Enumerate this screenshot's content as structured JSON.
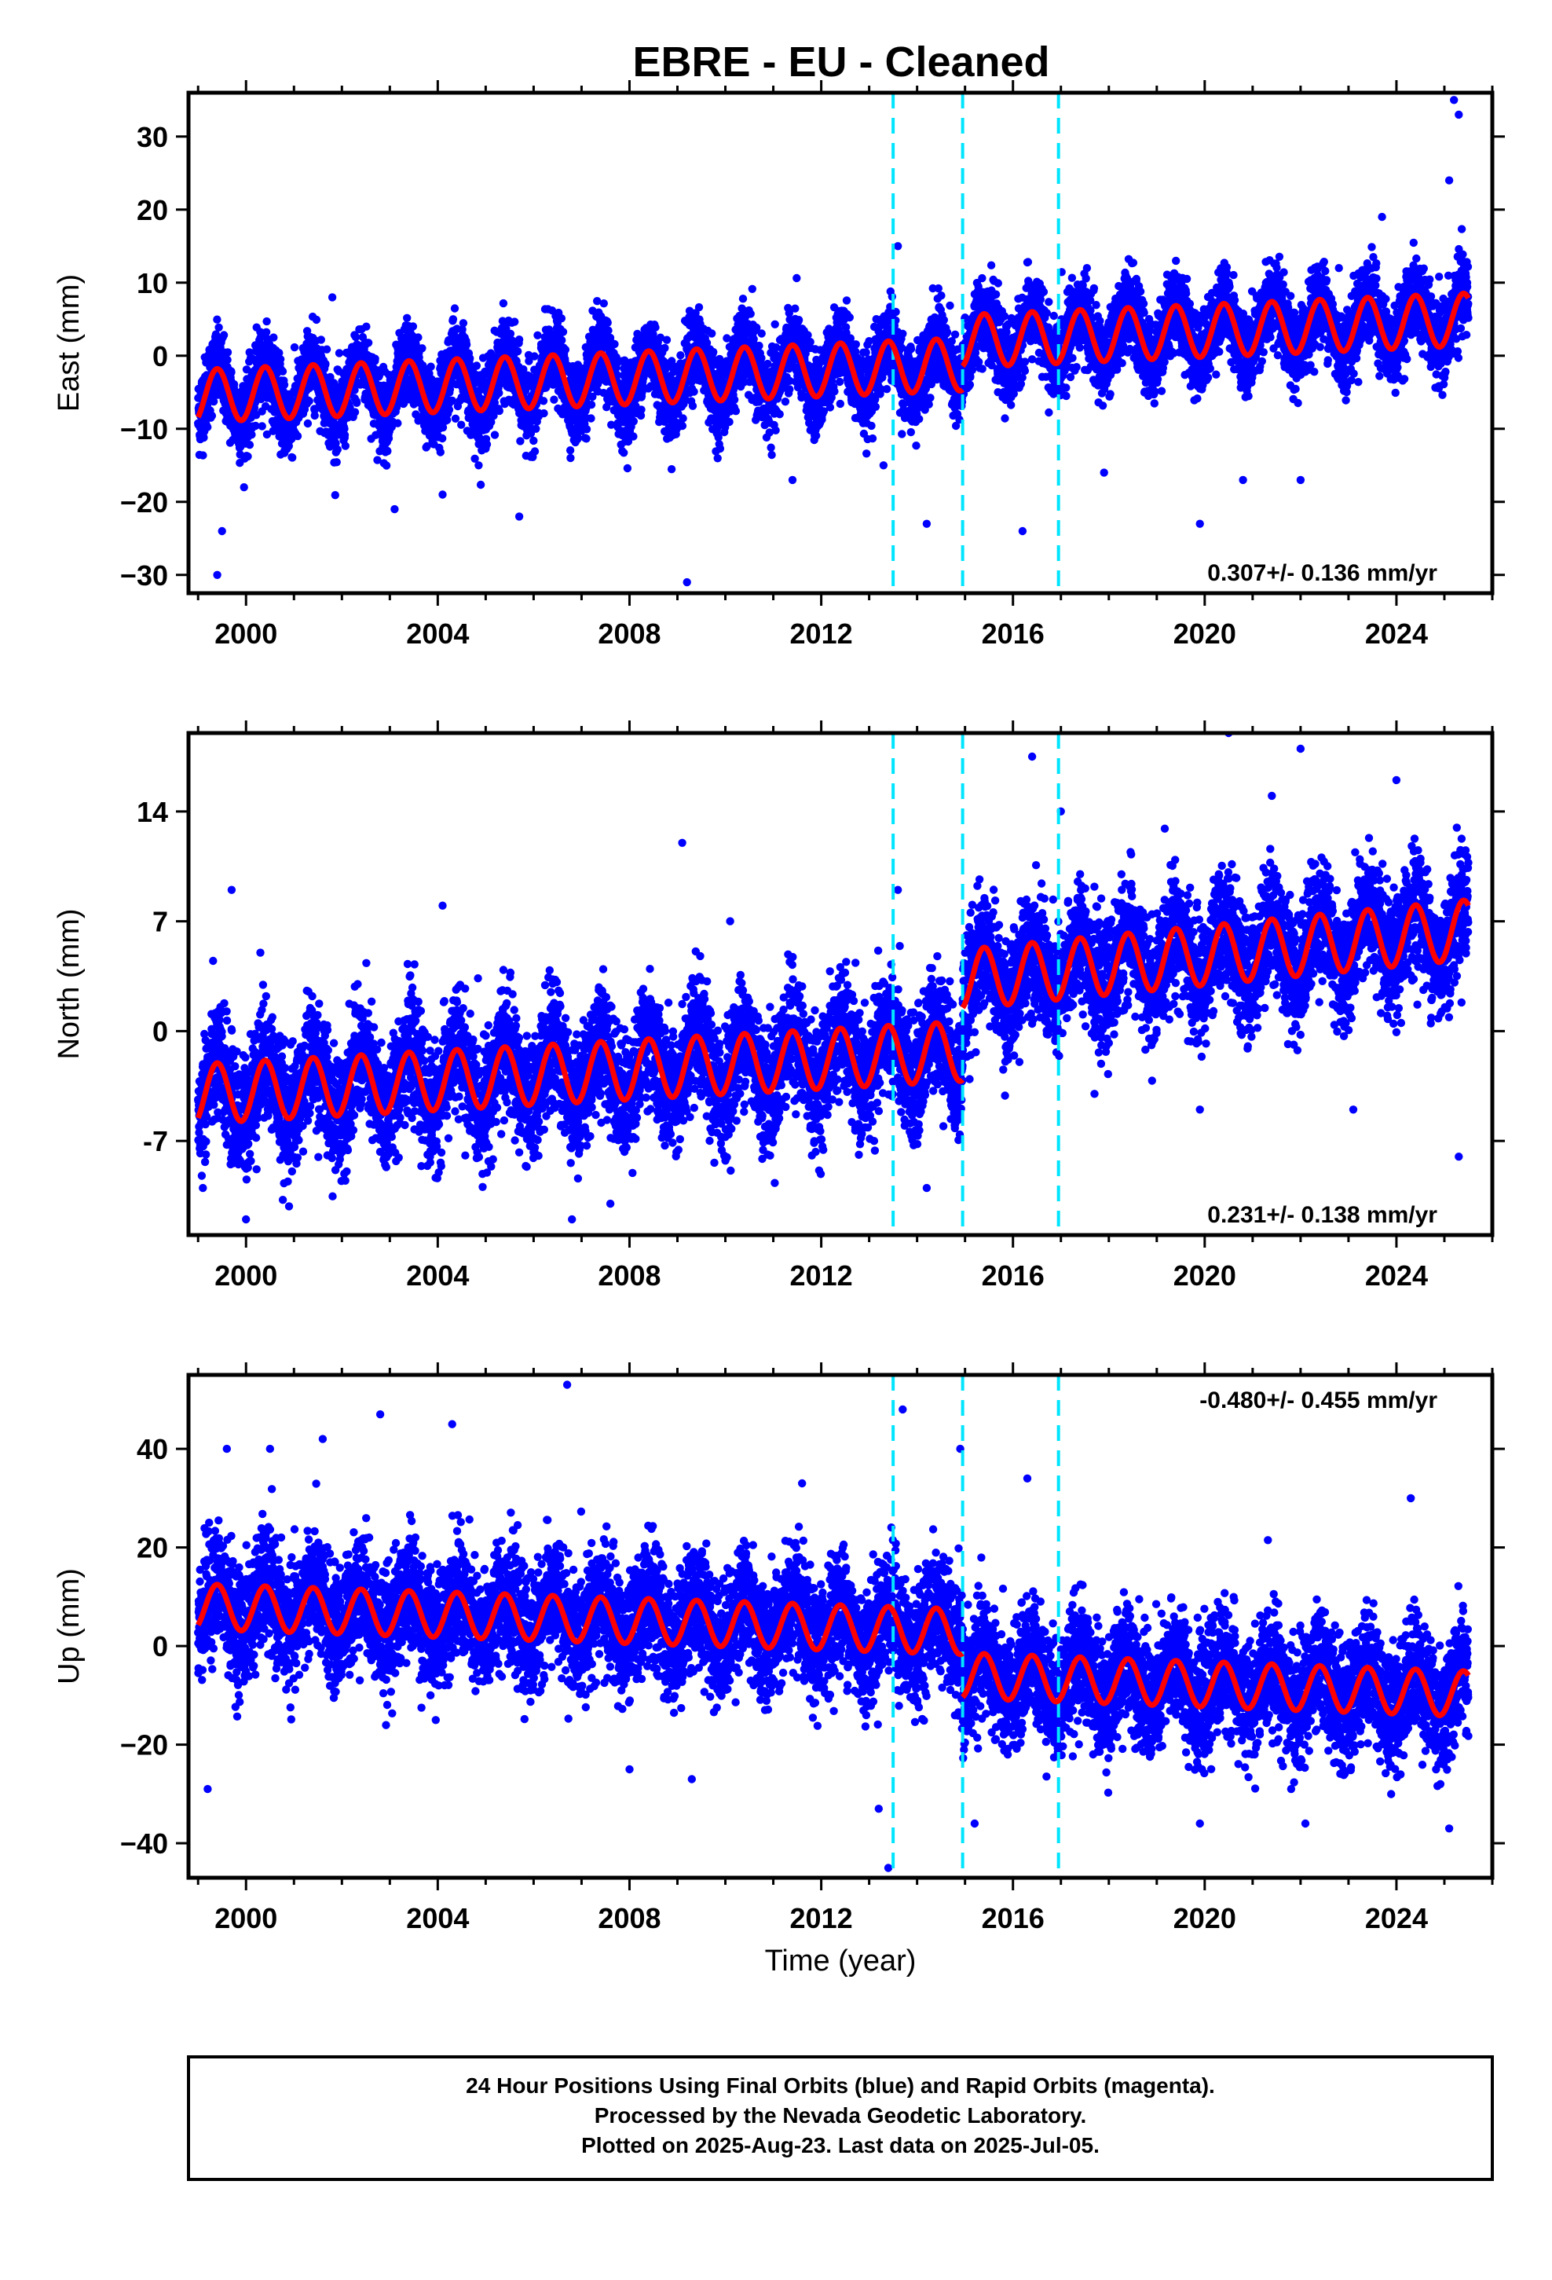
{
  "title": "EBRE  - EU - Cleaned",
  "colors": {
    "points": "#0000ff",
    "fit": "#ff0000",
    "breaks": "#00e5ff",
    "frame": "#000000"
  },
  "chart_data": [
    {
      "type": "scatter",
      "component": "East",
      "ylabel": "East (mm)",
      "xlabel": "",
      "xlim": [
        1998.8,
        2026.0
      ],
      "ylim": [
        -32.5,
        36
      ],
      "xticks": [
        "2000",
        "2004",
        "2008",
        "2012",
        "2016",
        "2020",
        "2024"
      ],
      "yticks": [
        "−30",
        "−20",
        "−10",
        "0",
        "10",
        "20",
        "30"
      ],
      "ytick_values": [
        -30,
        -20,
        -10,
        0,
        10,
        20,
        30
      ],
      "rate_text": "0.307+/- 0.136 mm/yr",
      "rate_position": "bottom-right",
      "breaks": [
        2013.5,
        2014.95,
        2016.95
      ],
      "fit": {
        "segments": [
          {
            "start": 1999.0,
            "end": 2014.95,
            "intercept": -5.5,
            "slope": 0.27
          },
          {
            "start": 2014.95,
            "end": 2025.5,
            "intercept": 2.0,
            "slope": 0.28
          }
        ],
        "amplitude": 3.6
      },
      "scatter_sd": 2.7,
      "outliers": [
        [
          1999.5,
          -24
        ],
        [
          1999.4,
          -30
        ],
        [
          2001.8,
          8
        ],
        [
          2003.1,
          -21
        ],
        [
          2004.1,
          -19
        ],
        [
          2005.7,
          -22
        ],
        [
          2009.2,
          -31
        ],
        [
          2011.4,
          -17
        ],
        [
          2013.3,
          -15
        ],
        [
          2013.6,
          15
        ],
        [
          2014.2,
          -23
        ],
        [
          2016.2,
          -24
        ],
        [
          2017.9,
          -16
        ],
        [
          2019.4,
          13
        ],
        [
          2019.9,
          -23
        ],
        [
          2020.8,
          -17
        ],
        [
          2022.0,
          -17
        ],
        [
          2022.8,
          12
        ],
        [
          2023.7,
          19
        ],
        [
          2025.2,
          35
        ],
        [
          2025.3,
          33
        ],
        [
          2025.1,
          24
        ]
      ]
    },
    {
      "type": "scatter",
      "component": "North",
      "ylabel": "North (mm)",
      "xlabel": "",
      "xlim": [
        1998.8,
        2026.0
      ],
      "ylim": [
        -13,
        19
      ],
      "xticks": [
        "2000",
        "2004",
        "2008",
        "2012",
        "2016",
        "2020",
        "2024"
      ],
      "yticks": [
        "14",
        "7",
        "0",
        "-7"
      ],
      "ytick_values": [
        14,
        7,
        0,
        -7
      ],
      "rate_text": "0.231+/- 0.138 mm/yr",
      "rate_position": "bottom-right",
      "breaks": [
        2013.5,
        2014.95,
        2016.95
      ],
      "fit": {
        "segments": [
          {
            "start": 1999.0,
            "end": 2014.95,
            "intercept": -4.0,
            "slope": 0.17
          },
          {
            "start": 2014.95,
            "end": 2025.5,
            "intercept": 3.3,
            "slope": 0.3
          }
        ],
        "amplitude": 1.9
      },
      "scatter_sd": 1.9,
      "outliers": [
        [
          1999.1,
          -10
        ],
        [
          1999.7,
          9
        ],
        [
          2000.0,
          -12
        ],
        [
          2000.3,
          5
        ],
        [
          2004.1,
          8
        ],
        [
          2006.8,
          -12
        ],
        [
          2007.6,
          -11
        ],
        [
          2009.1,
          12
        ],
        [
          2010.1,
          7
        ],
        [
          2013.6,
          9
        ],
        [
          2014.2,
          -10
        ],
        [
          2016.4,
          17.5
        ],
        [
          2017.0,
          14
        ],
        [
          2017.7,
          -4
        ],
        [
          2019.9,
          -5
        ],
        [
          2020.5,
          19
        ],
        [
          2021.4,
          15
        ],
        [
          2022.0,
          18
        ],
        [
          2023.1,
          -5
        ],
        [
          2024.0,
          16
        ],
        [
          2025.3,
          -8
        ]
      ]
    },
    {
      "type": "scatter",
      "component": "Up",
      "ylabel": "Up (mm)",
      "xlabel": "Time (year)",
      "xlim": [
        1998.8,
        2026.0
      ],
      "ylim": [
        -47,
        55
      ],
      "xticks": [
        "2000",
        "2004",
        "2008",
        "2012",
        "2016",
        "2020",
        "2024"
      ],
      "yticks": [
        "40",
        "20",
        "0",
        "−20",
        "−40"
      ],
      "ytick_values": [
        40,
        20,
        0,
        -20,
        -40
      ],
      "rate_text": "-0.480+/- 0.455 mm/yr",
      "rate_position": "top-right",
      "breaks": [
        2013.5,
        2014.95,
        2016.95
      ],
      "fit": {
        "segments": [
          {
            "start": 1999.0,
            "end": 2014.95,
            "intercept": 8.0,
            "slope": -0.32
          },
          {
            "start": 2014.95,
            "end": 2025.5,
            "intercept": -6.0,
            "slope": -0.35
          }
        ],
        "amplitude": 4.6
      },
      "scatter_sd": 6.0,
      "outliers": [
        [
          1999.2,
          -29
        ],
        [
          1999.6,
          40
        ],
        [
          2000.5,
          40
        ],
        [
          2001.6,
          42
        ],
        [
          2002.8,
          47
        ],
        [
          2004.3,
          45
        ],
        [
          2006.7,
          53
        ],
        [
          2008.0,
          -25
        ],
        [
          2009.3,
          -27
        ],
        [
          2011.6,
          33
        ],
        [
          2013.2,
          -33
        ],
        [
          2013.4,
          -45
        ],
        [
          2013.7,
          48
        ],
        [
          2014.9,
          40
        ],
        [
          2015.2,
          -36
        ],
        [
          2016.3,
          34
        ],
        [
          2019.9,
          -36
        ],
        [
          2022.1,
          -36
        ],
        [
          2024.3,
          30
        ],
        [
          2025.1,
          -37
        ]
      ]
    }
  ],
  "footer": {
    "line1": "24 Hour Positions Using Final Orbits (blue) and Rapid Orbits (magenta).",
    "line2": "Processed by the Nevada Geodetic Laboratory.",
    "line3": "Plotted on 2025-Aug-23. Last data on 2025-Jul-05."
  }
}
